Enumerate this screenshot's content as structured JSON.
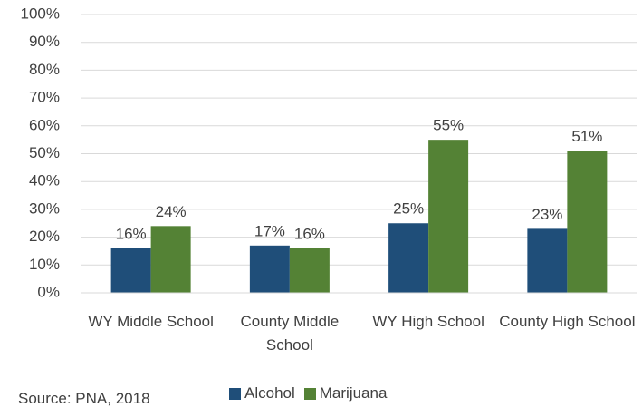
{
  "chart_data": {
    "type": "bar",
    "categories": [
      "WY Middle School",
      "County Middle School",
      "WY High School",
      "County High School"
    ],
    "series": [
      {
        "name": "Alcohol",
        "color": "#1f4e79",
        "values": [
          16,
          17,
          25,
          23
        ],
        "value_labels": [
          "16%",
          "17%",
          "25%",
          "23%"
        ]
      },
      {
        "name": "Marijuana",
        "color": "#548235",
        "values": [
          24,
          16,
          55,
          51
        ],
        "value_labels": [
          "24%",
          "16%",
          "55%",
          "51%"
        ]
      }
    ],
    "ylim": [
      0,
      100
    ],
    "yticks": [
      {
        "value": 0,
        "label": "0%"
      },
      {
        "value": 10,
        "label": "10%"
      },
      {
        "value": 20,
        "label": "20%"
      },
      {
        "value": 30,
        "label": "30%"
      },
      {
        "value": 40,
        "label": "40%"
      },
      {
        "value": 50,
        "label": "50%"
      },
      {
        "value": 60,
        "label": "60%"
      },
      {
        "value": 70,
        "label": "70%"
      },
      {
        "value": 80,
        "label": "80%"
      },
      {
        "value": 90,
        "label": "90%"
      },
      {
        "value": 100,
        "label": "100%"
      }
    ],
    "grid": true,
    "legend": "bottom",
    "source": "Source: PNA, 2018"
  }
}
